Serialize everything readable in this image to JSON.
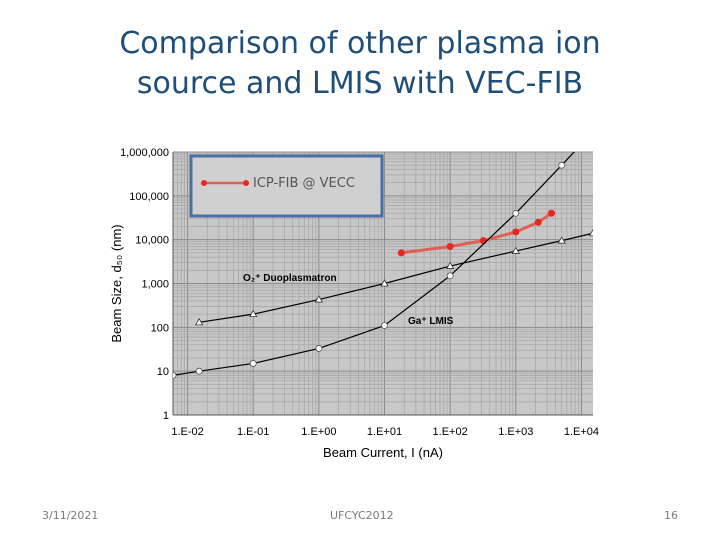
{
  "slide": {
    "title_line1": "Comparison of other plasma ion",
    "title_line2": "source and LMIS with VEC-FIB",
    "footer_date": "3/11/2021",
    "footer_center": "UFCYC2012",
    "page_number": "16"
  },
  "chart_data": {
    "type": "line",
    "scale": "log-log",
    "xlabel": "Beam Current, I (nA)",
    "ylabel": "Beam Size, d₅₀ (nm)",
    "xlim": [
      0.006,
      15000
    ],
    "ylim": [
      1,
      1000000
    ],
    "x_ticks": [
      0.01,
      0.1,
      1,
      10,
      100,
      1000,
      10000
    ],
    "x_tick_labels": [
      "1.E-02",
      "1.E-01",
      "1.E+00",
      "1.E+01",
      "1.E+02",
      "1.E+03",
      "1.E+04"
    ],
    "y_ticks": [
      1,
      10,
      100,
      1000,
      10000,
      100000,
      1000000
    ],
    "y_tick_labels": [
      "1",
      "10",
      "100",
      "1,000",
      "10,000",
      "100,000",
      "1,000,000"
    ],
    "grid": true,
    "legend_position": "top-left",
    "series": [
      {
        "name": "ICP-FIB @ VECC",
        "color": "#e8281e",
        "line_color": "#e06058",
        "marker": "circle",
        "x": [
          18,
          100,
          320,
          1000,
          2200,
          3500
        ],
        "y": [
          5000,
          7000,
          9500,
          15000,
          25000,
          40000
        ]
      },
      {
        "label": "O₂⁺ Duoplasmatron",
        "color": "#000000",
        "marker": "triangle",
        "x": [
          0.015,
          0.1,
          1,
          10,
          100,
          1000,
          5000,
          15000
        ],
        "y": [
          130,
          200,
          430,
          1000,
          2500,
          5500,
          9500,
          14000
        ]
      },
      {
        "label": "Ga⁺ LMIS",
        "color": "#000000",
        "marker": "circle-open",
        "x": [
          0.006,
          0.015,
          0.1,
          1,
          10,
          100,
          1000,
          5000,
          10000
        ],
        "y": [
          8,
          10,
          15,
          33,
          110,
          1500,
          40000,
          500000,
          1500000
        ]
      }
    ]
  }
}
